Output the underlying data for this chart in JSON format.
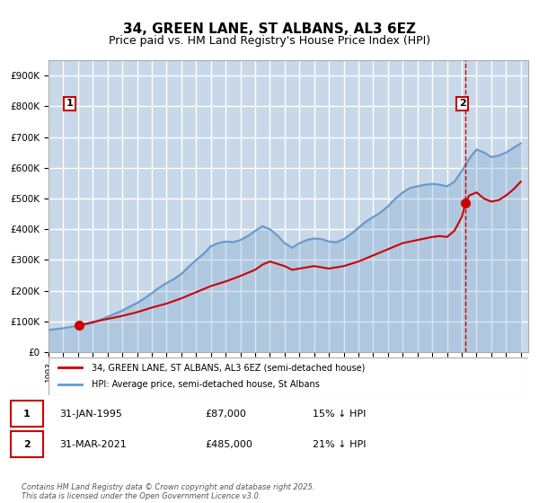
{
  "title": "34, GREEN LANE, ST ALBANS, AL3 6EZ",
  "subtitle": "Price paid vs. HM Land Registry's House Price Index (HPI)",
  "title_fontsize": 11,
  "subtitle_fontsize": 9,
  "background_color": "#ffffff",
  "plot_bg_color": "#e8f0f8",
  "hatch_color": "#c8d8e8",
  "grid_color": "#ffffff",
  "red_line_color": "#cc0000",
  "blue_line_color": "#6699cc",
  "annotation_box_color": "#cc0000",
  "dashed_line_color": "#cc0000",
  "ylim": [
    0,
    950000
  ],
  "yticks": [
    0,
    100000,
    200000,
    300000,
    400000,
    500000,
    600000,
    700000,
    800000,
    900000
  ],
  "ytick_labels": [
    "£0",
    "£100K",
    "£200K",
    "£300K",
    "£400K",
    "£500K",
    "£600K",
    "£700K",
    "£800K",
    "£900K"
  ],
  "xlim_start": 1993.0,
  "xlim_end": 2025.5,
  "xtick_years": [
    1993,
    1994,
    1995,
    1996,
    1997,
    1998,
    1999,
    2000,
    2001,
    2002,
    2003,
    2004,
    2005,
    2006,
    2007,
    2008,
    2009,
    2010,
    2011,
    2012,
    2013,
    2014,
    2015,
    2016,
    2017,
    2018,
    2019,
    2020,
    2021,
    2022,
    2023,
    2024,
    2025
  ],
  "sale1_x": 1995.08,
  "sale1_y": 87000,
  "sale2_x": 2021.25,
  "sale2_y": 485000,
  "legend_label1": "34, GREEN LANE, ST ALBANS, AL3 6EZ (semi-detached house)",
  "legend_label2": "HPI: Average price, semi-detached house, St Albans",
  "annotation1_label": "1",
  "annotation2_label": "2",
  "table_row1": [
    "1",
    "31-JAN-1995",
    "£87,000",
    "15% ↓ HPI"
  ],
  "table_row2": [
    "2",
    "31-MAR-2021",
    "£485,000",
    "21% ↓ HPI"
  ],
  "footer": "Contains HM Land Registry data © Crown copyright and database right 2025.\nThis data is licensed under the Open Government Licence v3.0.",
  "hpi_x": [
    1993.0,
    1993.5,
    1994.0,
    1994.5,
    1995.0,
    1995.5,
    1996.0,
    1996.5,
    1997.0,
    1997.5,
    1998.0,
    1998.5,
    1999.0,
    1999.5,
    2000.0,
    2000.5,
    2001.0,
    2001.5,
    2002.0,
    2002.5,
    2003.0,
    2003.5,
    2004.0,
    2004.5,
    2005.0,
    2005.5,
    2006.0,
    2006.5,
    2007.0,
    2007.5,
    2008.0,
    2008.5,
    2009.0,
    2009.5,
    2010.0,
    2010.5,
    2011.0,
    2011.5,
    2012.0,
    2012.5,
    2013.0,
    2013.5,
    2014.0,
    2014.5,
    2015.0,
    2015.5,
    2016.0,
    2016.5,
    2017.0,
    2017.5,
    2018.0,
    2018.5,
    2019.0,
    2019.5,
    2020.0,
    2020.5,
    2021.0,
    2021.5,
    2022.0,
    2022.5,
    2023.0,
    2023.5,
    2024.0,
    2024.5,
    2025.0
  ],
  "hpi_y": [
    72000,
    75000,
    78000,
    82000,
    85000,
    90000,
    95000,
    105000,
    115000,
    125000,
    135000,
    148000,
    160000,
    175000,
    192000,
    210000,
    225000,
    238000,
    255000,
    278000,
    300000,
    320000,
    345000,
    355000,
    360000,
    358000,
    365000,
    378000,
    395000,
    410000,
    400000,
    380000,
    355000,
    340000,
    355000,
    365000,
    370000,
    368000,
    360000,
    358000,
    368000,
    385000,
    405000,
    425000,
    440000,
    455000,
    475000,
    500000,
    520000,
    535000,
    540000,
    545000,
    548000,
    545000,
    540000,
    555000,
    590000,
    630000,
    660000,
    650000,
    635000,
    640000,
    650000,
    665000,
    680000
  ],
  "red_x": [
    1995.08,
    1995.5,
    1996.0,
    1997.0,
    1998.0,
    1999.0,
    2000.0,
    2001.0,
    2002.0,
    2003.0,
    2004.0,
    2005.0,
    2006.0,
    2007.0,
    2007.5,
    2008.0,
    2009.0,
    2009.5,
    2010.0,
    2011.0,
    2012.0,
    2013.0,
    2014.0,
    2015.0,
    2016.0,
    2017.0,
    2018.0,
    2019.0,
    2019.5,
    2020.0,
    2020.5,
    2021.0,
    2021.25,
    2021.5,
    2022.0,
    2022.5,
    2023.0,
    2023.5,
    2024.0,
    2024.5,
    2025.0
  ],
  "red_y": [
    87000,
    92000,
    98000,
    108000,
    118000,
    130000,
    145000,
    158000,
    175000,
    195000,
    215000,
    230000,
    248000,
    268000,
    285000,
    295000,
    280000,
    268000,
    272000,
    280000,
    272000,
    280000,
    295000,
    315000,
    335000,
    355000,
    365000,
    375000,
    378000,
    375000,
    395000,
    440000,
    485000,
    510000,
    520000,
    500000,
    490000,
    495000,
    510000,
    530000,
    555000
  ]
}
